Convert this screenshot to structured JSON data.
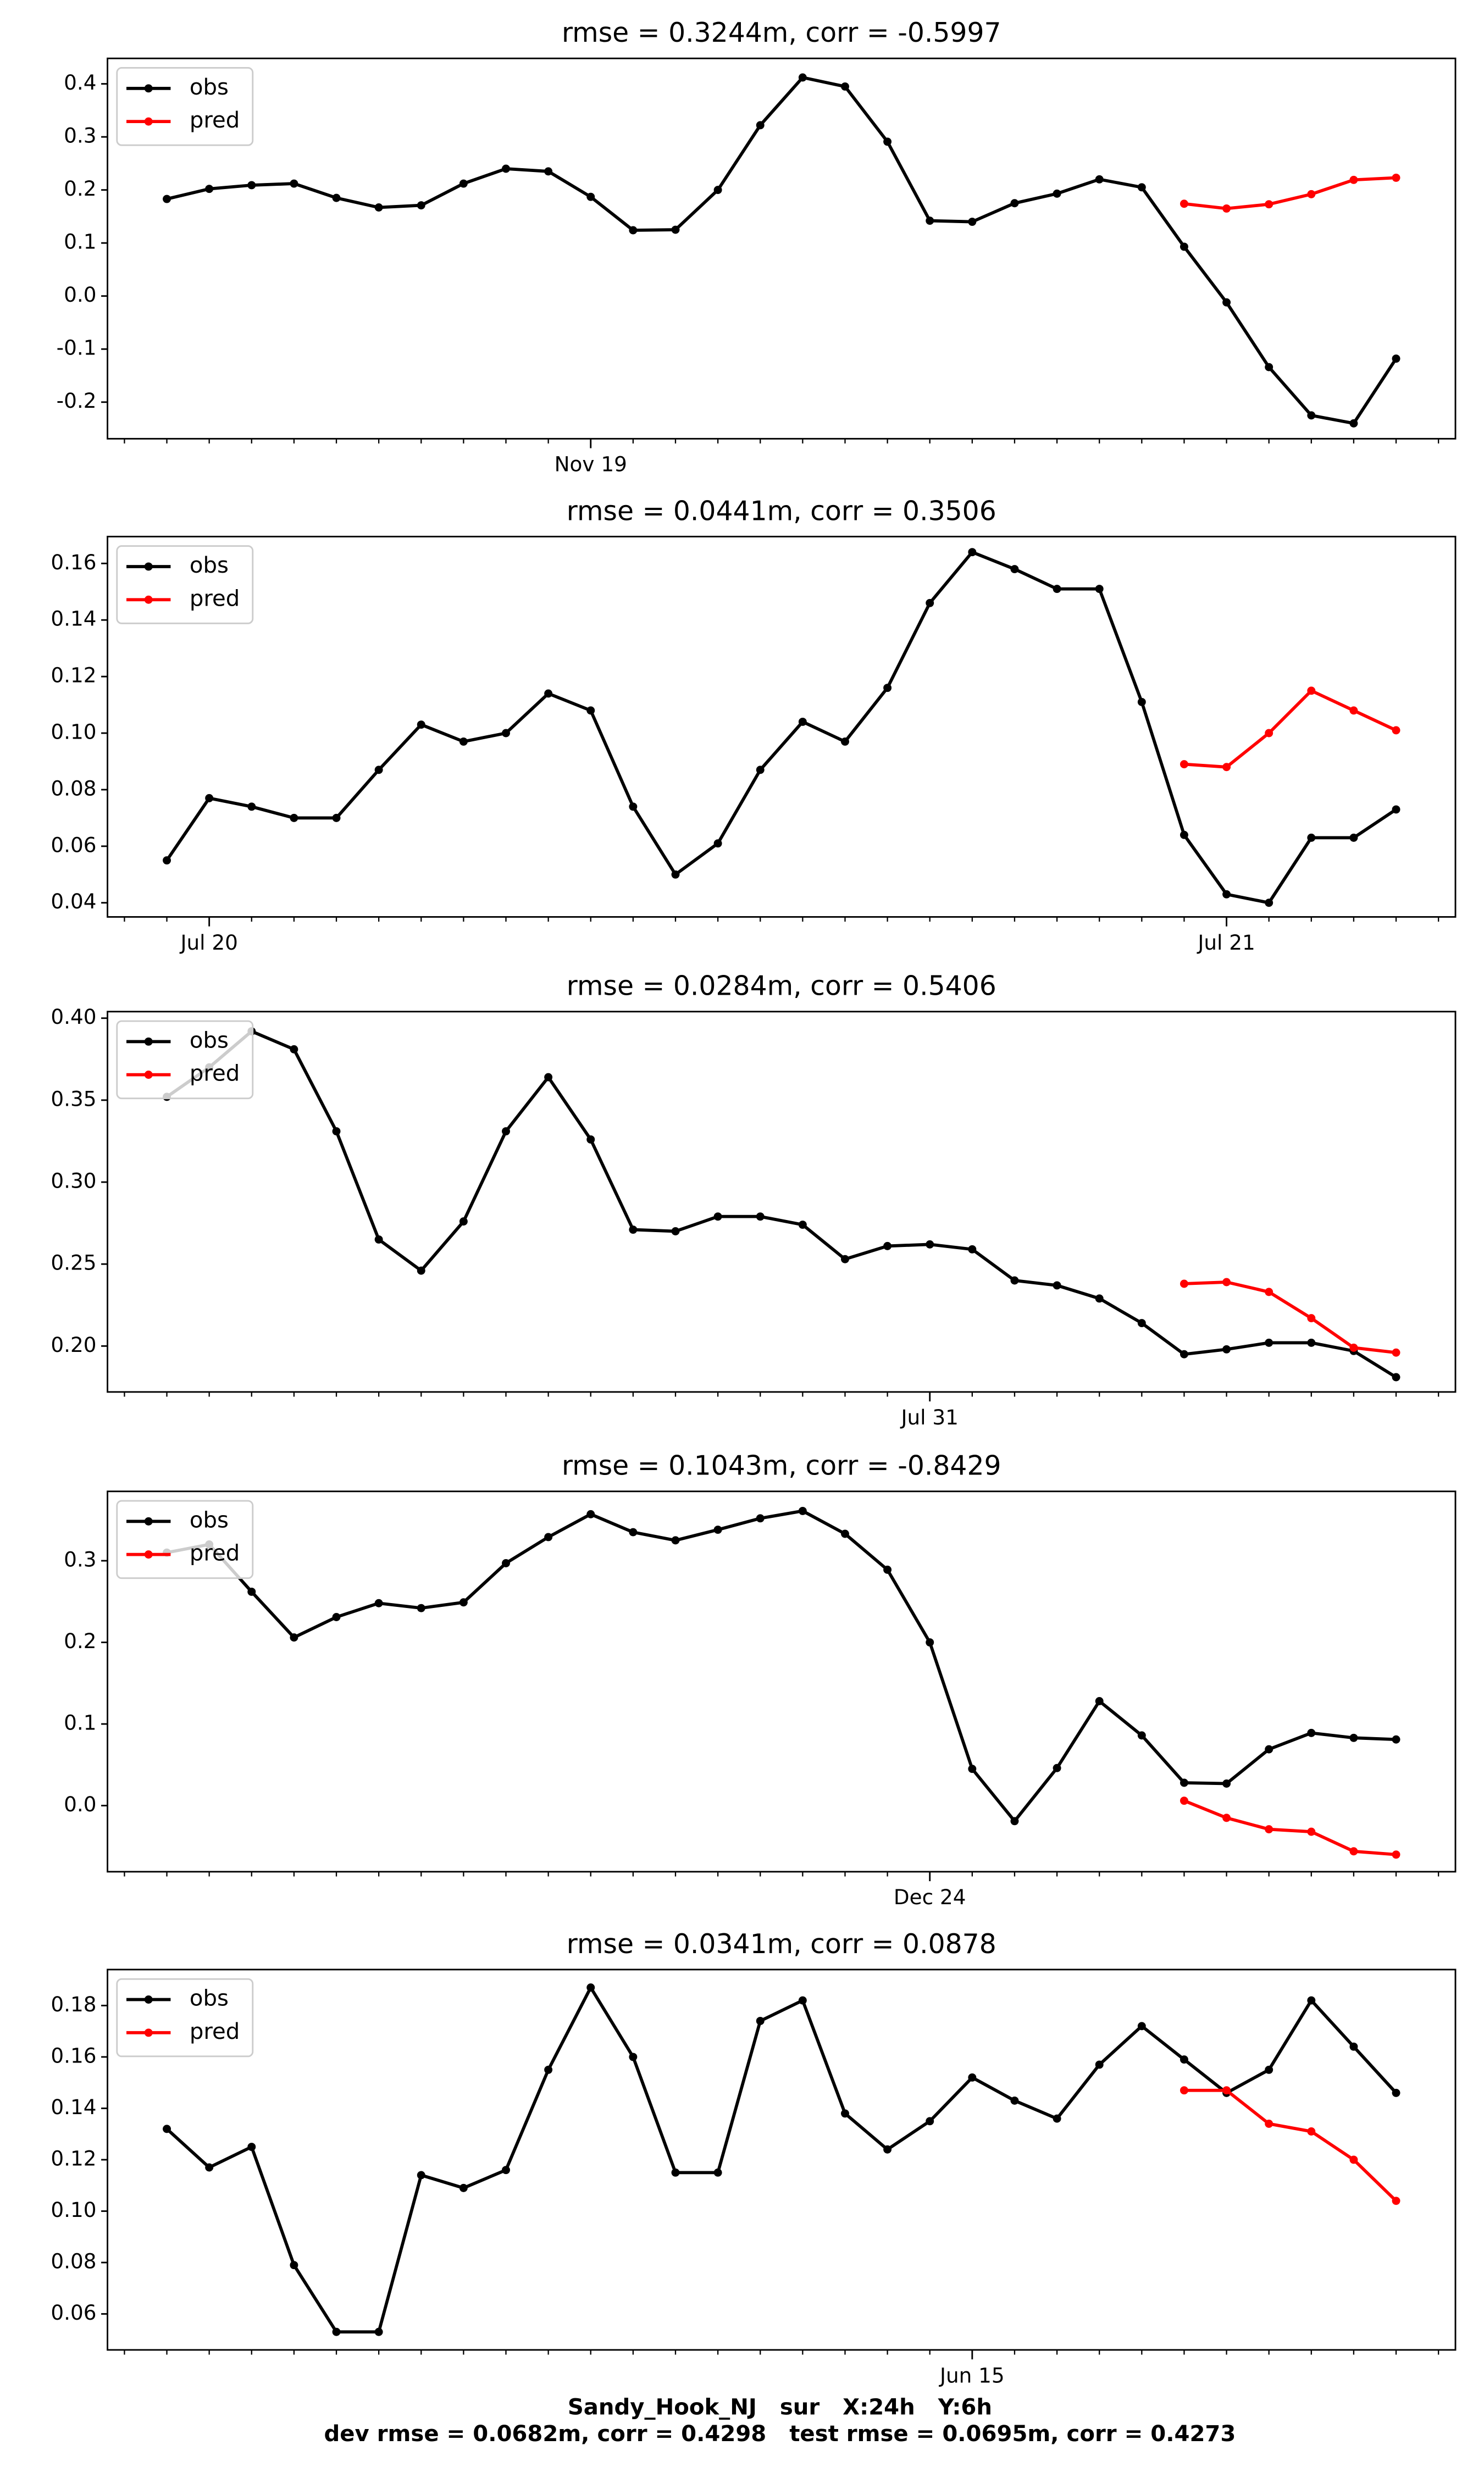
{
  "chart_data": [
    {
      "type": "line",
      "title": "rmse = 0.3244m, corr = -0.5997",
      "legend": "upper left",
      "x": [
        0,
        1,
        2,
        3,
        4,
        5,
        6,
        7,
        8,
        9,
        10,
        11,
        12,
        13,
        14,
        15,
        16,
        17,
        18,
        19,
        20,
        21,
        22,
        23,
        24,
        25,
        26,
        27,
        28,
        29
      ],
      "series": [
        {
          "name": "obs",
          "color": "#000000",
          "values": [
            0.183,
            0.202,
            0.209,
            0.212,
            0.185,
            0.167,
            0.171,
            0.212,
            0.24,
            0.235,
            0.187,
            0.124,
            0.125,
            0.2,
            0.322,
            0.412,
            0.395,
            0.291,
            0.142,
            0.14,
            0.175,
            0.193,
            0.22,
            0.205,
            0.093,
            -0.012,
            -0.134,
            -0.225,
            -0.24,
            -0.118
          ]
        },
        {
          "name": "pred",
          "color": "#ff0000",
          "values": [
            null,
            null,
            null,
            null,
            null,
            null,
            null,
            null,
            null,
            null,
            null,
            null,
            null,
            null,
            null,
            null,
            null,
            null,
            null,
            null,
            null,
            null,
            null,
            null,
            0.174,
            0.165,
            0.173,
            0.192,
            0.219,
            0.223
          ]
        }
      ],
      "xlim": [
        -1.4,
        30.4
      ],
      "xticks": [
        {
          "value": 10,
          "label": "Nov 19"
        }
      ],
      "xminorticks": [
        -1,
        0,
        1,
        2,
        3,
        4,
        5,
        6,
        7,
        8,
        9,
        11,
        12,
        13,
        14,
        15,
        16,
        17,
        18,
        19,
        20,
        21,
        22,
        23,
        24,
        25,
        26,
        27,
        28,
        29,
        30
      ],
      "ylim": [
        -0.269,
        0.448
      ],
      "yticks": [
        -0.2,
        -0.1,
        {
          "value": 0,
          "label": "0.0"
        },
        0.1,
        0.2,
        0.3,
        0.4
      ]
    },
    {
      "type": "line",
      "title": "rmse = 0.0441m, corr = 0.3506",
      "legend": "upper left",
      "x": [
        0,
        1,
        2,
        3,
        4,
        5,
        6,
        7,
        8,
        9,
        10,
        11,
        12,
        13,
        14,
        15,
        16,
        17,
        18,
        19,
        20,
        21,
        22,
        23,
        24,
        25,
        26,
        27,
        28,
        29
      ],
      "series": [
        {
          "name": "obs",
          "color": "#000000",
          "values": [
            0.055,
            0.077,
            0.074,
            0.07,
            0.07,
            0.087,
            0.103,
            0.097,
            0.1,
            0.114,
            0.108,
            0.074,
            0.05,
            0.061,
            0.087,
            0.104,
            0.097,
            0.116,
            0.146,
            0.164,
            0.158,
            0.151,
            0.151,
            0.111,
            0.064,
            0.043,
            0.04,
            0.063,
            0.063,
            0.073
          ]
        },
        {
          "name": "pred",
          "color": "#ff0000",
          "values": [
            null,
            null,
            null,
            null,
            null,
            null,
            null,
            null,
            null,
            null,
            null,
            null,
            null,
            null,
            null,
            null,
            null,
            null,
            null,
            null,
            null,
            null,
            null,
            null,
            0.089,
            0.088,
            0.1,
            0.115,
            0.108,
            0.101
          ]
        }
      ],
      "xlim": [
        -1.4,
        30.4
      ],
      "xticks": [
        {
          "value": 1,
          "label": "Jul 20"
        },
        {
          "value": 25,
          "label": "Jul 21"
        }
      ],
      "xminorticks": [
        -1,
        0,
        2,
        3,
        4,
        5,
        6,
        7,
        8,
        9,
        10,
        11,
        12,
        13,
        14,
        15,
        16,
        17,
        18,
        19,
        20,
        21,
        22,
        23,
        24,
        26,
        27,
        28,
        29,
        30
      ],
      "ylim": [
        0.035,
        0.1695
      ],
      "yticks": [
        0.04,
        0.06,
        0.08,
        {
          "value": 0.1,
          "label": "0.10"
        },
        0.12,
        0.14,
        0.16
      ]
    },
    {
      "type": "line",
      "title": "rmse = 0.0284m, corr = 0.5406",
      "legend": "upper left",
      "x": [
        0,
        1,
        2,
        3,
        4,
        5,
        6,
        7,
        8,
        9,
        10,
        11,
        12,
        13,
        14,
        15,
        16,
        17,
        18,
        19,
        20,
        21,
        22,
        23,
        24,
        25,
        26,
        27,
        28,
        29
      ],
      "series": [
        {
          "name": "obs",
          "color": "#000000",
          "values": [
            0.352,
            0.37,
            0.392,
            0.381,
            0.331,
            0.265,
            0.246,
            0.276,
            0.331,
            0.364,
            0.326,
            0.271,
            0.27,
            0.279,
            0.279,
            0.274,
            0.253,
            0.261,
            0.262,
            0.259,
            0.24,
            0.237,
            0.229,
            0.214,
            0.195,
            0.198,
            0.202,
            0.202,
            0.197,
            0.181
          ]
        },
        {
          "name": "pred",
          "color": "#ff0000",
          "values": [
            null,
            null,
            null,
            null,
            null,
            null,
            null,
            null,
            null,
            null,
            null,
            null,
            null,
            null,
            null,
            null,
            null,
            null,
            null,
            null,
            null,
            null,
            null,
            null,
            0.238,
            0.239,
            0.233,
            0.217,
            0.199,
            0.196
          ]
        }
      ],
      "xlim": [
        -1.4,
        30.4
      ],
      "xticks": [
        {
          "value": 18,
          "label": "Jul 31"
        }
      ],
      "xminorticks": [
        -1,
        0,
        1,
        2,
        3,
        4,
        5,
        6,
        7,
        8,
        9,
        10,
        11,
        12,
        13,
        14,
        15,
        16,
        17,
        19,
        20,
        21,
        22,
        23,
        24,
        25,
        26,
        27,
        28,
        29,
        30
      ],
      "ylim": [
        0.172,
        0.404
      ],
      "yticks": [
        {
          "value": 0.2,
          "label": "0.20"
        },
        0.25,
        {
          "value": 0.3,
          "label": "0.30"
        },
        0.35,
        {
          "value": 0.4,
          "label": "0.40"
        }
      ]
    },
    {
      "type": "line",
      "title": "rmse = 0.1043m, corr = -0.8429",
      "legend": "upper left",
      "x": [
        0,
        1,
        2,
        3,
        4,
        5,
        6,
        7,
        8,
        9,
        10,
        11,
        12,
        13,
        14,
        15,
        16,
        17,
        18,
        19,
        20,
        21,
        22,
        23,
        24,
        25,
        26,
        27,
        28,
        29
      ],
      "series": [
        {
          "name": "obs",
          "color": "#000000",
          "values": [
            0.31,
            0.32,
            0.262,
            0.206,
            0.231,
            0.248,
            0.242,
            0.249,
            0.297,
            0.329,
            0.357,
            0.335,
            0.325,
            0.338,
            0.352,
            0.361,
            0.333,
            0.289,
            0.2,
            0.045,
            -0.019,
            0.046,
            0.128,
            0.086,
            0.028,
            0.027,
            0.069,
            0.089,
            0.083,
            0.081
          ]
        },
        {
          "name": "pred",
          "color": "#ff0000",
          "values": [
            null,
            null,
            null,
            null,
            null,
            null,
            null,
            null,
            null,
            null,
            null,
            null,
            null,
            null,
            null,
            null,
            null,
            null,
            null,
            null,
            null,
            null,
            null,
            null,
            0.006,
            -0.015,
            -0.029,
            -0.032,
            -0.056,
            -0.06
          ]
        }
      ],
      "xlim": [
        -1.4,
        30.4
      ],
      "xticks": [
        {
          "value": 18,
          "label": "Dec 24"
        }
      ],
      "xminorticks": [
        -1,
        0,
        1,
        2,
        3,
        4,
        5,
        6,
        7,
        8,
        9,
        10,
        11,
        12,
        13,
        14,
        15,
        16,
        17,
        19,
        20,
        21,
        22,
        23,
        24,
        25,
        26,
        27,
        28,
        29,
        30
      ],
      "ylim": [
        -0.081,
        0.385
      ],
      "yticks": [
        {
          "value": 0,
          "label": "0.0"
        },
        0.1,
        0.2,
        0.3
      ]
    },
    {
      "type": "line",
      "title": "rmse = 0.0341m, corr = 0.0878",
      "legend": "upper left",
      "x": [
        0,
        1,
        2,
        3,
        4,
        5,
        6,
        7,
        8,
        9,
        10,
        11,
        12,
        13,
        14,
        15,
        16,
        17,
        18,
        19,
        20,
        21,
        22,
        23,
        24,
        25,
        26,
        27,
        28,
        29
      ],
      "series": [
        {
          "name": "obs",
          "color": "#000000",
          "values": [
            0.132,
            0.117,
            0.125,
            0.079,
            0.053,
            0.053,
            0.114,
            0.109,
            0.116,
            0.155,
            0.187,
            0.16,
            0.115,
            0.115,
            0.174,
            0.182,
            0.138,
            0.124,
            0.135,
            0.152,
            0.143,
            0.136,
            0.157,
            0.172,
            0.159,
            0.146,
            0.155,
            0.182,
            0.164,
            0.146
          ]
        },
        {
          "name": "pred",
          "color": "#ff0000",
          "values": [
            null,
            null,
            null,
            null,
            null,
            null,
            null,
            null,
            null,
            null,
            null,
            null,
            null,
            null,
            null,
            null,
            null,
            null,
            null,
            null,
            null,
            null,
            null,
            null,
            0.147,
            0.147,
            0.134,
            0.131,
            0.12,
            0.104
          ]
        }
      ],
      "xlim": [
        -1.4,
        30.4
      ],
      "xticks": [
        {
          "value": 19,
          "label": "Jun 15"
        }
      ],
      "xminorticks": [
        -1,
        0,
        1,
        2,
        3,
        4,
        5,
        6,
        7,
        8,
        9,
        10,
        11,
        12,
        13,
        14,
        15,
        16,
        17,
        18,
        20,
        21,
        22,
        23,
        24,
        25,
        26,
        27,
        28,
        29,
        30
      ],
      "ylim": [
        0.046,
        0.194
      ],
      "yticks": [
        0.06,
        0.08,
        {
          "value": 0.1,
          "label": "0.10"
        },
        0.12,
        0.14,
        0.16,
        0.18
      ]
    }
  ],
  "footer": [
    "Sandy_Hook_NJ   sur   X:24h   Y:6h",
    "dev rmse = 0.0682m, corr = 0.4298   test rmse = 0.0695m, corr = 0.4273"
  ]
}
